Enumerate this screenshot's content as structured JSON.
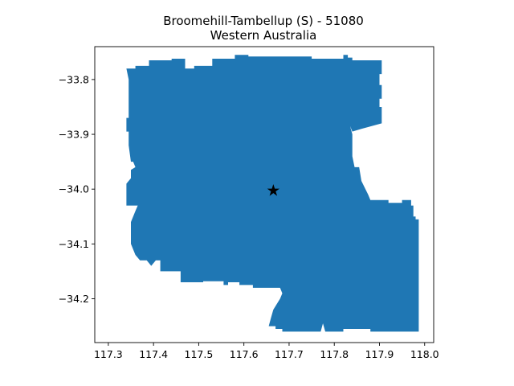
{
  "title_line1": "Broomehill-Tambellup (S) - 51080",
  "title_line2": "Western Australia",
  "colors": {
    "region_fill": "#1f77b4",
    "marker": "#ff7f0e",
    "axes": "#000000",
    "background": "#ffffff"
  },
  "axes": {
    "xlim": [
      117.27,
      118.02
    ],
    "ylim": [
      -34.28,
      -33.74
    ],
    "xticks": [
      {
        "value": 117.3,
        "label": "117.3"
      },
      {
        "value": 117.4,
        "label": "117.4"
      },
      {
        "value": 117.5,
        "label": "117.5"
      },
      {
        "value": 117.6,
        "label": "117.6"
      },
      {
        "value": 117.7,
        "label": "117.7"
      },
      {
        "value": 117.8,
        "label": "117.8"
      },
      {
        "value": 117.9,
        "label": "117.9"
      },
      {
        "value": 118.0,
        "label": "118.0"
      }
    ],
    "yticks": [
      {
        "value": -33.8,
        "label": "−33.8"
      },
      {
        "value": -33.9,
        "label": "−33.9"
      },
      {
        "value": -34.0,
        "label": "−34.0"
      },
      {
        "value": -34.1,
        "label": "−34.1"
      },
      {
        "value": -34.2,
        "label": "−34.2"
      }
    ]
  },
  "boundary": [
    [
      117.34,
      -33.78
    ],
    [
      117.36,
      -33.78
    ],
    [
      117.36,
      -33.775
    ],
    [
      117.39,
      -33.775
    ],
    [
      117.39,
      -33.765
    ],
    [
      117.44,
      -33.765
    ],
    [
      117.44,
      -33.762
    ],
    [
      117.47,
      -33.762
    ],
    [
      117.47,
      -33.78
    ],
    [
      117.49,
      -33.78
    ],
    [
      117.49,
      -33.775
    ],
    [
      117.53,
      -33.775
    ],
    [
      117.53,
      -33.762
    ],
    [
      117.58,
      -33.762
    ],
    [
      117.58,
      -33.755
    ],
    [
      117.61,
      -33.755
    ],
    [
      117.61,
      -33.758
    ],
    [
      117.75,
      -33.758
    ],
    [
      117.75,
      -33.762
    ],
    [
      117.82,
      -33.762
    ],
    [
      117.82,
      -33.755
    ],
    [
      117.83,
      -33.755
    ],
    [
      117.83,
      -33.76
    ],
    [
      117.84,
      -33.76
    ],
    [
      117.84,
      -33.765
    ],
    [
      117.905,
      -33.765
    ],
    [
      117.905,
      -33.79
    ],
    [
      117.9,
      -33.79
    ],
    [
      117.9,
      -33.81
    ],
    [
      117.905,
      -33.81
    ],
    [
      117.905,
      -33.835
    ],
    [
      117.9,
      -33.835
    ],
    [
      117.9,
      -33.85
    ],
    [
      117.905,
      -33.85
    ],
    [
      117.905,
      -33.88
    ],
    [
      117.86,
      -33.89
    ],
    [
      117.84,
      -33.895
    ],
    [
      117.835,
      -33.885
    ],
    [
      117.84,
      -33.9
    ],
    [
      117.84,
      -33.94
    ],
    [
      117.845,
      -33.96
    ],
    [
      117.855,
      -33.96
    ],
    [
      117.86,
      -33.985
    ],
    [
      117.875,
      -34.01
    ],
    [
      117.88,
      -34.02
    ],
    [
      117.92,
      -34.02
    ],
    [
      117.92,
      -34.025
    ],
    [
      117.95,
      -34.025
    ],
    [
      117.95,
      -34.02
    ],
    [
      117.97,
      -34.02
    ],
    [
      117.97,
      -34.03
    ],
    [
      117.975,
      -34.03
    ],
    [
      117.975,
      -34.05
    ],
    [
      117.98,
      -34.05
    ],
    [
      117.98,
      -34.055
    ],
    [
      117.987,
      -34.055
    ],
    [
      117.987,
      -34.26
    ],
    [
      117.88,
      -34.26
    ],
    [
      117.88,
      -34.255
    ],
    [
      117.82,
      -34.255
    ],
    [
      117.82,
      -34.26
    ],
    [
      117.78,
      -34.26
    ],
    [
      117.775,
      -34.245
    ],
    [
      117.77,
      -34.26
    ],
    [
      117.685,
      -34.26
    ],
    [
      117.685,
      -34.255
    ],
    [
      117.67,
      -34.255
    ],
    [
      117.67,
      -34.25
    ],
    [
      117.655,
      -34.25
    ],
    [
      117.66,
      -34.235
    ],
    [
      117.665,
      -34.22
    ],
    [
      117.68,
      -34.2
    ],
    [
      117.685,
      -34.19
    ],
    [
      117.68,
      -34.18
    ],
    [
      117.62,
      -34.18
    ],
    [
      117.62,
      -34.175
    ],
    [
      117.59,
      -34.175
    ],
    [
      117.59,
      -34.17
    ],
    [
      117.565,
      -34.17
    ],
    [
      117.565,
      -34.175
    ],
    [
      117.555,
      -34.175
    ],
    [
      117.555,
      -34.168
    ],
    [
      117.51,
      -34.168
    ],
    [
      117.51,
      -34.17
    ],
    [
      117.46,
      -34.17
    ],
    [
      117.46,
      -34.15
    ],
    [
      117.415,
      -34.15
    ],
    [
      117.415,
      -34.13
    ],
    [
      117.405,
      -34.13
    ],
    [
      117.395,
      -34.14
    ],
    [
      117.385,
      -34.13
    ],
    [
      117.37,
      -34.13
    ],
    [
      117.36,
      -34.12
    ],
    [
      117.35,
      -34.1
    ],
    [
      117.35,
      -34.06
    ],
    [
      117.36,
      -34.04
    ],
    [
      117.365,
      -34.03
    ],
    [
      117.34,
      -34.03
    ],
    [
      117.34,
      -33.99
    ],
    [
      117.35,
      -33.98
    ],
    [
      117.35,
      -33.965
    ],
    [
      117.36,
      -33.96
    ],
    [
      117.355,
      -33.95
    ],
    [
      117.35,
      -33.95
    ],
    [
      117.345,
      -33.92
    ],
    [
      117.345,
      -33.895
    ],
    [
      117.34,
      -33.895
    ],
    [
      117.34,
      -33.87
    ],
    [
      117.345,
      -33.87
    ],
    [
      117.345,
      -33.8
    ]
  ],
  "centroid": {
    "lon": 117.665,
    "lat": -34.002
  }
}
